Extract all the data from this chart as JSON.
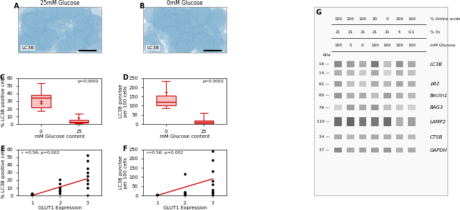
{
  "panel_A_title": "25mM Glucose",
  "panel_B_title": "0mM Glucose",
  "panel_label_A": "A",
  "panel_label_B": "B",
  "panel_label_C": "C",
  "panel_label_D": "D",
  "panel_label_E": "E",
  "panel_label_F": "F",
  "panel_label_G": "G",
  "lc3b_label": "LC3B",
  "box_C": {
    "group0_median": 34,
    "group0_q1": 22,
    "group0_q3": 38,
    "group0_min": 17,
    "group0_max": 53,
    "group0_outliers": [
      27,
      30
    ],
    "group25_median": 3,
    "group25_q1": 2,
    "group25_q3": 5,
    "group25_min": 1,
    "group25_max": 14,
    "group25_outliers": [
      8
    ],
    "ylabel": "% LC3B positive cells",
    "xlabel": "mM Glucose content",
    "pvalue": "p=0.0002",
    "ylim": [
      0,
      60
    ],
    "yticks": [
      0,
      10,
      20,
      30,
      40,
      50,
      60
    ],
    "xticks": [
      "0",
      "25"
    ]
  },
  "box_D": {
    "group0_median": 120,
    "group0_q1": 100,
    "group0_q3": 155,
    "group0_min": 85,
    "group0_max": 235,
    "group0_outliers": [
      175
    ],
    "group25_median": 10,
    "group25_q1": 5,
    "group25_q3": 20,
    "group25_min": 1,
    "group25_max": 60,
    "group25_outliers": [],
    "ylabel": "LC3B punctae\nper 100 cells",
    "xlabel": "mM Glucose content",
    "pvalue": "p=0.0002",
    "ylim": [
      0,
      250
    ],
    "yticks": [
      0,
      50,
      100,
      150,
      200,
      250
    ],
    "xticks": [
      "0",
      "25"
    ]
  },
  "scatter_E": {
    "x": [
      1,
      1,
      1,
      1,
      1,
      2,
      2,
      2,
      2,
      2,
      2,
      3,
      3,
      3,
      3,
      3,
      3,
      3,
      3,
      3
    ],
    "y": [
      1,
      2,
      3,
      1.5,
      0.5,
      5,
      15,
      10,
      3,
      7,
      21,
      10,
      25,
      20,
      30,
      45,
      52,
      0,
      15,
      35
    ],
    "xlabel": "GLUT1 Expression",
    "ylabel": "% LC3B positive cells",
    "annotation": "r =0.56; p=0.002",
    "ylim": [
      0,
      60
    ],
    "yticks": [
      0,
      10,
      20,
      30,
      40,
      50,
      60
    ],
    "xticks": [
      1,
      2,
      3
    ],
    "line_x": [
      1,
      3
    ],
    "line_y": [
      0,
      22
    ]
  },
  "scatter_F": {
    "x": [
      1,
      1,
      1,
      1,
      1,
      2,
      2,
      2,
      2,
      2,
      2,
      3,
      3,
      3,
      3,
      3,
      3,
      3,
      3,
      3
    ],
    "y": [
      2,
      5,
      3,
      1,
      0,
      15,
      115,
      10,
      5,
      20,
      3,
      20,
      190,
      130,
      80,
      30,
      240,
      0,
      10,
      60
    ],
    "xlabel": "GLUT1 Expression",
    "ylabel": "LC3B punctae\nper 100 cells",
    "annotation": "r=0.56; p=0.002",
    "ylim": [
      0,
      250
    ],
    "yticks": [
      0,
      50,
      100,
      150,
      200,
      250
    ],
    "xticks": [
      1,
      2,
      3
    ],
    "line_x": [
      1,
      3
    ],
    "line_y": [
      0,
      90
    ]
  },
  "western_G": {
    "header_row1": [
      "100",
      "100",
      "100",
      "20",
      "0",
      "100",
      "100",
      "% Amino acids"
    ],
    "header_row2": [
      "21",
      "21",
      "21",
      "21",
      "21",
      "5",
      "0.1",
      "% O₂"
    ],
    "header_row3": [
      "100",
      "5",
      "0",
      "100",
      "100",
      "100",
      "100",
      "mM Glucose"
    ],
    "kda_labels": [
      "16",
      "14",
      "62",
      "60",
      "76",
      "110",
      "34",
      "37"
    ],
    "protein_labels": [
      "LC3B",
      "p62",
      "Beclin1",
      "BAG3",
      "LAMP2",
      "CTSB",
      "GAPDH"
    ]
  },
  "bg_color": "#ffffff",
  "box_fill": "#f5c5c5",
  "line_color": "#cc0000",
  "scatter_marker_color": "#000000"
}
